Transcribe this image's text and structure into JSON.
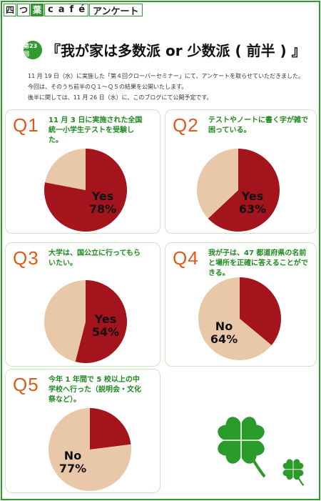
{
  "header": {
    "brand_boxes": [
      "四",
      "つ",
      "葉"
    ],
    "brand_word": [
      "c",
      "a",
      "f",
      "é"
    ],
    "brand_tail": "アンケート"
  },
  "title": {
    "badge": "第23回",
    "text": "『我が家は多数派 or 少数派 ( 前半 ) 』"
  },
  "intro": {
    "line1": "11 月 19 日（水）に実施した「第４回クローバーセミナー」にて、アンケートを取らせていただきました。",
    "line2": "今回は、そのうち前半のＱ１～Ｑ５の結果を公開いたします。",
    "line3": "後半に関しては、11 月 26 日（水）に、このブログにて公開予定です。"
  },
  "questions": [
    {
      "num": "Q1",
      "text": "11 月 3 日に実施された全国統一小学生テストを受験した。",
      "label": "Yes",
      "pct_text": "78%"
    },
    {
      "num": "Q2",
      "text": "テストやノートに書く字が雑で困っている。",
      "label": "Yes",
      "pct_text": "63%"
    },
    {
      "num": "Q3",
      "text": "大学は、国公立に行ってもらいたい。",
      "label": "Yes",
      "pct_text": "54%"
    },
    {
      "num": "Q4",
      "text": "我が子は、47 都道府県の名前と場所を正確に答えることができる。",
      "label": "No",
      "pct_text": "64%"
    },
    {
      "num": "Q5",
      "text": "今年 1 年間で 5 校以上の中学校へ行った（説明会・文化祭など）。",
      "label": "No",
      "pct_text": "77%"
    }
  ],
  "chart_data": [
    {
      "type": "pie",
      "title": "Q1",
      "slices": [
        {
          "label": "Yes",
          "value": 78
        },
        {
          "label": "No",
          "value": 22
        }
      ]
    },
    {
      "type": "pie",
      "title": "Q2",
      "slices": [
        {
          "label": "Yes",
          "value": 63
        },
        {
          "label": "No",
          "value": 37
        }
      ]
    },
    {
      "type": "pie",
      "title": "Q3",
      "slices": [
        {
          "label": "Yes",
          "value": 54
        },
        {
          "label": "No",
          "value": 46
        }
      ]
    },
    {
      "type": "pie",
      "title": "Q4",
      "slices": [
        {
          "label": "Yes",
          "value": 36
        },
        {
          "label": "No",
          "value": 64
        }
      ]
    },
    {
      "type": "pie",
      "title": "Q5",
      "slices": [
        {
          "label": "Yes",
          "value": 23
        },
        {
          "label": "No",
          "value": 77
        }
      ]
    }
  ],
  "colors": {
    "green": "#2f9a2f",
    "question_orange": "#e05a17",
    "yes_red": "#a3141d",
    "no_beige": "#e8c8a8"
  }
}
